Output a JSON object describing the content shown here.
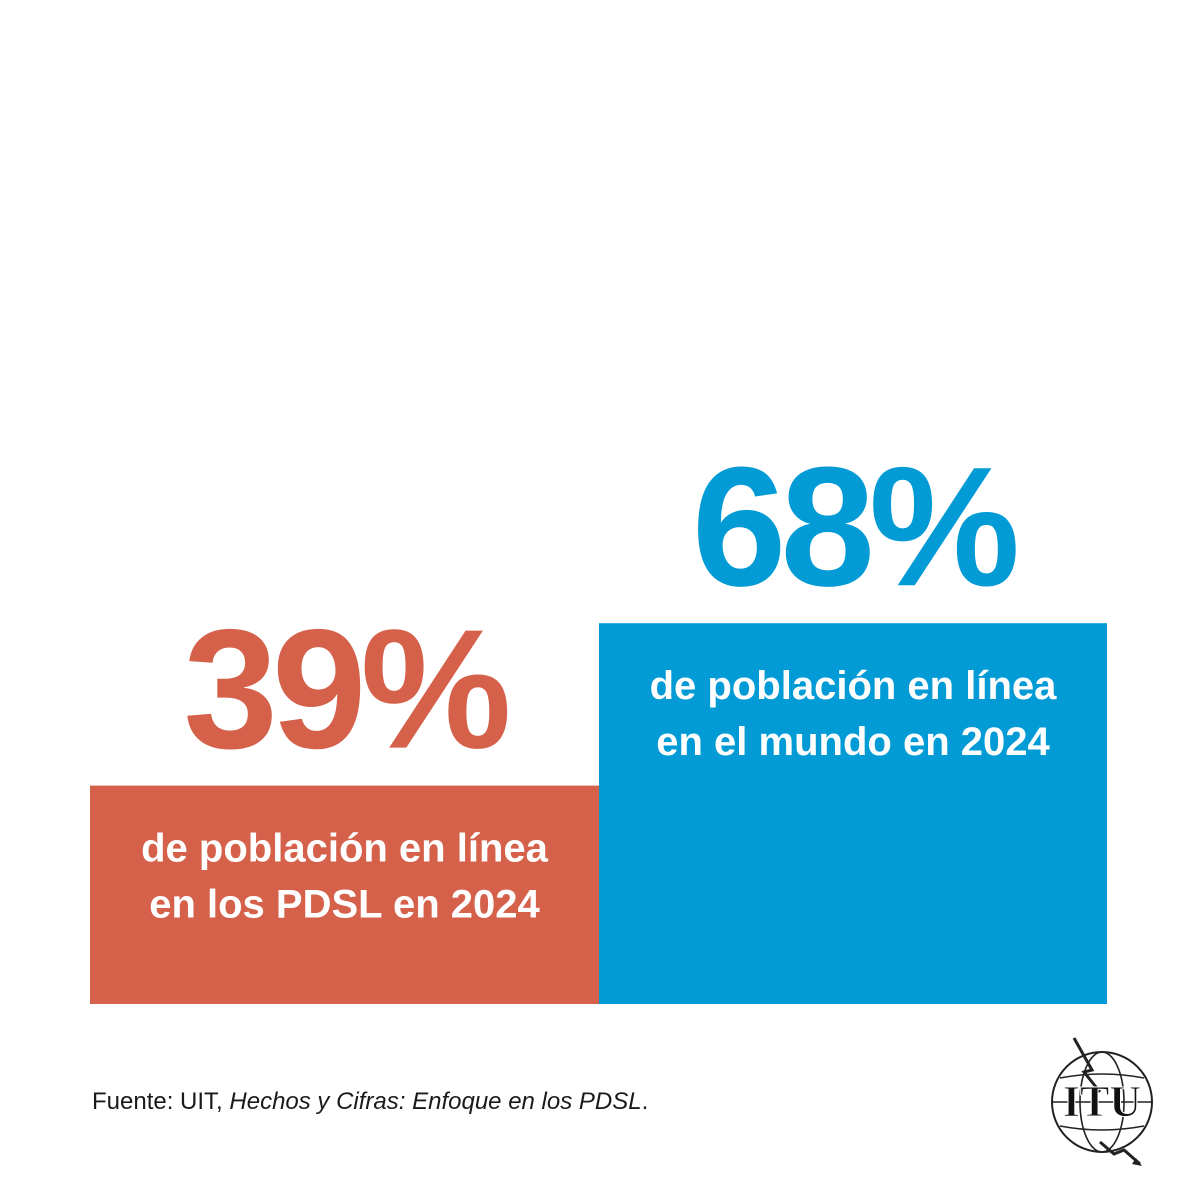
{
  "chart_data": {
    "type": "bar",
    "categories": [
      "PDSL 2024",
      "Mundo 2024"
    ],
    "values": [
      39,
      68
    ],
    "ylim": [
      0,
      100
    ],
    "series": [
      {
        "name": "PDSL",
        "value": 39,
        "value_label": "39%",
        "label_lines": [
          "de población en línea",
          "en los PDSL en 2024"
        ],
        "color": "#d5614a"
      },
      {
        "name": "Mundo",
        "value": 68,
        "value_label": "68%",
        "label_lines": [
          "de población en línea",
          "en el mundo en 2024"
        ],
        "color": "#029bd6"
      }
    ],
    "title": "",
    "xlabel": "",
    "ylabel": ""
  },
  "source": {
    "prefix": "Fuente: UIT, ",
    "title": "Hechos y Cifras: Enfoque en los PDSL",
    "suffix": "."
  },
  "logo": {
    "text": "ITU",
    "icon": "itu-logo-icon"
  }
}
